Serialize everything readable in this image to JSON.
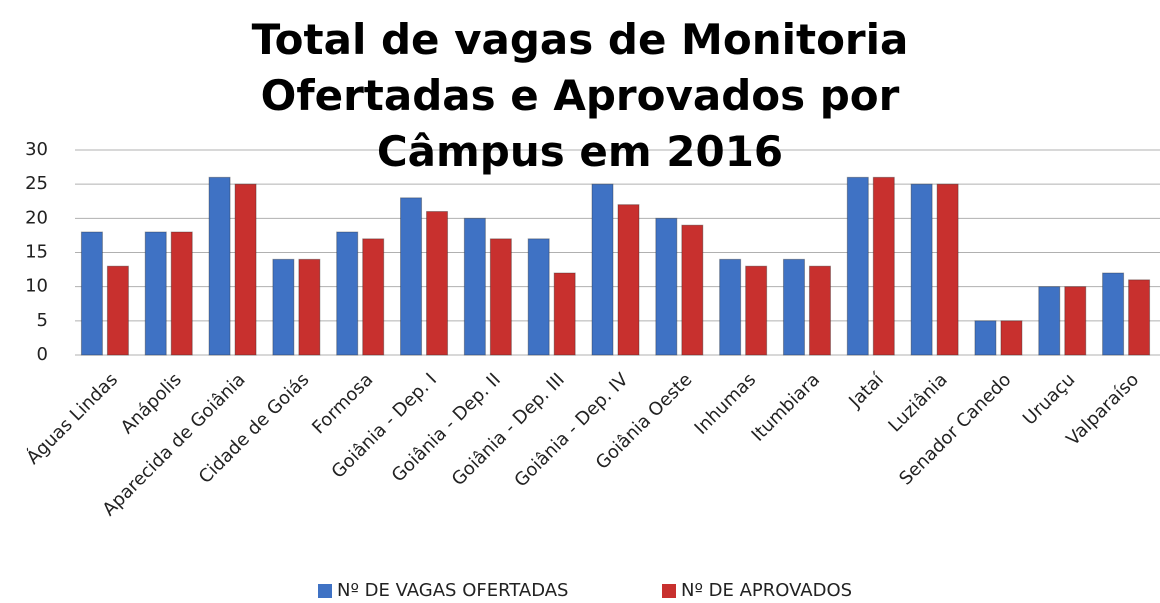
{
  "chart_data": {
    "type": "bar",
    "title": "Total de vagas de Monitoria Ofertadas e Aprovados por Câmpus em 2016",
    "categories": [
      "Águas Lindas",
      "Anápolis",
      "Aparecida de Goiânia",
      "Cidade de Goiás",
      "Formosa",
      "Goiânia - Dep. I",
      "Goiânia - Dep. II",
      "Goiânia - Dep. III",
      "Goiânia - Dep. IV",
      "Goiânia Oeste",
      "Inhumas",
      "Itumbiara",
      "Jataí",
      "Luziânia",
      "Senador Canedo",
      "Uruaçu",
      "Valparaíso"
    ],
    "series": [
      {
        "name": "Nº DE VAGAS OFERTADAS",
        "color": "#3f72c4",
        "values": [
          18,
          18,
          26,
          14,
          18,
          23,
          20,
          17,
          25,
          20,
          14,
          14,
          26,
          25,
          5,
          10,
          12
        ]
      },
      {
        "name": "Nº DE APROVADOS",
        "color": "#c8302e",
        "values": [
          13,
          18,
          25,
          14,
          17,
          21,
          17,
          12,
          22,
          19,
          13,
          13,
          26,
          25,
          5,
          10,
          11
        ]
      }
    ],
    "ylim": [
      0,
      30
    ],
    "yticks": [
      0,
      5,
      10,
      15,
      20,
      25,
      30
    ],
    "grid": true,
    "legend": "bottom"
  }
}
